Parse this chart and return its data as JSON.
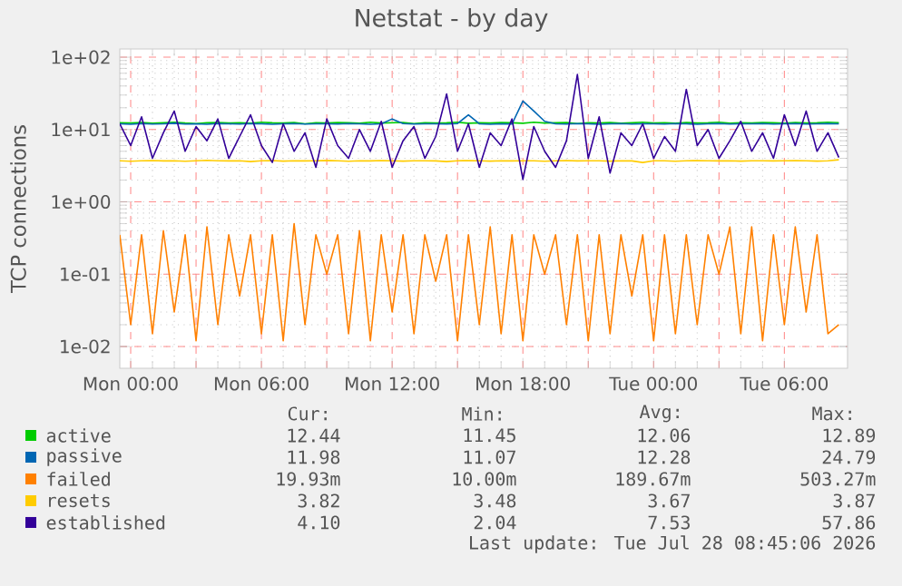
{
  "chart_data": {
    "type": "line",
    "title": "Netstat - by day",
    "ylabel": "TCP connections",
    "log": true,
    "grid": true,
    "legend": "bottom",
    "xlim": [
      "2026-07-26T23:30",
      "2026-07-28T08:54"
    ],
    "ylim": [
      0.005,
      130
    ],
    "xticks": [
      {
        "value": "2026-07-27T00:00",
        "label": "Mon 00:00"
      },
      {
        "value": "2026-07-27T03:00",
        "label": null
      },
      {
        "value": "2026-07-27T06:00",
        "label": "Mon 06:00"
      },
      {
        "value": "2026-07-27T09:00",
        "label": null
      },
      {
        "value": "2026-07-27T12:00",
        "label": "Mon 12:00"
      },
      {
        "value": "2026-07-27T15:00",
        "label": null
      },
      {
        "value": "2026-07-27T18:00",
        "label": "Mon 18:00"
      },
      {
        "value": "2026-07-27T21:00",
        "label": null
      },
      {
        "value": "2026-07-28T00:00",
        "label": "Tue 00:00"
      },
      {
        "value": "2026-07-28T03:00",
        "label": null
      },
      {
        "value": "2026-07-28T06:00",
        "label": "Tue 06:00"
      }
    ],
    "yticks": [
      {
        "value": 0.01,
        "label": "1e-02"
      },
      {
        "value": 0.1,
        "label": "1e-01"
      },
      {
        "value": 1,
        "label": "1e+00"
      },
      {
        "value": 10,
        "label": "1e+01"
      },
      {
        "value": 100,
        "label": "1e+02"
      }
    ],
    "x": [
      "2026-07-26T23:30",
      "2026-07-27T00:00",
      "2026-07-27T00:30",
      "2026-07-27T01:00",
      "2026-07-27T01:30",
      "2026-07-27T02:00",
      "2026-07-27T02:30",
      "2026-07-27T03:00",
      "2026-07-27T03:30",
      "2026-07-27T04:00",
      "2026-07-27T04:30",
      "2026-07-27T05:00",
      "2026-07-27T05:30",
      "2026-07-27T06:00",
      "2026-07-27T06:30",
      "2026-07-27T07:00",
      "2026-07-27T07:30",
      "2026-07-27T08:00",
      "2026-07-27T08:30",
      "2026-07-27T09:00",
      "2026-07-27T09:30",
      "2026-07-27T10:00",
      "2026-07-27T10:30",
      "2026-07-27T11:00",
      "2026-07-27T11:30",
      "2026-07-27T12:00",
      "2026-07-27T12:30",
      "2026-07-27T13:00",
      "2026-07-27T13:30",
      "2026-07-27T14:00",
      "2026-07-27T14:30",
      "2026-07-27T15:00",
      "2026-07-27T15:30",
      "2026-07-27T16:00",
      "2026-07-27T16:30",
      "2026-07-27T17:00",
      "2026-07-27T17:30",
      "2026-07-27T18:00",
      "2026-07-27T18:30",
      "2026-07-27T19:00",
      "2026-07-27T19:30",
      "2026-07-27T20:00",
      "2026-07-27T20:30",
      "2026-07-27T21:00",
      "2026-07-27T21:30",
      "2026-07-27T22:00",
      "2026-07-27T22:30",
      "2026-07-27T23:00",
      "2026-07-27T23:30",
      "2026-07-28T00:00",
      "2026-07-28T00:30",
      "2026-07-28T01:00",
      "2026-07-28T01:30",
      "2026-07-28T02:00",
      "2026-07-28T02:30",
      "2026-07-28T03:00",
      "2026-07-28T03:30",
      "2026-07-28T04:00",
      "2026-07-28T04:30",
      "2026-07-28T05:00",
      "2026-07-28T05:30",
      "2026-07-28T06:00",
      "2026-07-28T06:30",
      "2026-07-28T07:00",
      "2026-07-28T07:30",
      "2026-07-28T08:00",
      "2026-07-28T08:30"
    ],
    "series": [
      {
        "name": "active",
        "color": "#00cc00",
        "values": [
          12.4,
          12.3,
          12.5,
          12.2,
          12.4,
          12.6,
          12.3,
          12.1,
          12.4,
          12.5,
          12.3,
          12.4,
          12.2,
          12.6,
          12.4,
          12.3,
          12.5,
          12.0,
          12.4,
          12.3,
          12.5,
          12.4,
          12.2,
          12.6,
          12.3,
          12.4,
          12.5,
          12.1,
          12.4,
          12.3,
          12.4,
          12.6,
          12.2,
          12.4,
          12.3,
          12.5,
          12.4,
          12.2,
          12.6,
          12.3,
          12.4,
          12.5,
          12.1,
          12.4,
          12.3,
          12.5,
          12.2,
          12.4,
          12.6,
          12.3,
          12.4,
          12.2,
          12.5,
          12.3,
          12.4,
          12.6,
          12.2,
          12.4,
          12.3,
          12.5,
          12.4,
          12.2,
          12.5,
          12.3,
          12.4,
          12.6,
          12.44
        ]
      },
      {
        "name": "passive",
        "color": "#0066b3",
        "values": [
          12.0,
          11.8,
          12.1,
          11.9,
          12.0,
          12.2,
          11.9,
          12.0,
          11.8,
          12.1,
          12.0,
          11.9,
          12.1,
          12.0,
          11.8,
          12.0,
          12.1,
          11.9,
          12.0,
          12.0,
          11.9,
          12.1,
          12.0,
          11.8,
          12.0,
          14.0,
          12.1,
          11.9,
          12.0,
          12.0,
          11.9,
          12.1,
          16.0,
          12.0,
          11.8,
          12.0,
          11.9,
          24.79,
          18.0,
          13.0,
          12.0,
          11.9,
          12.1,
          12.0,
          11.8,
          12.0,
          12.1,
          11.9,
          12.0,
          12.0,
          11.9,
          12.1,
          12.0,
          11.8,
          12.0,
          12.1,
          11.9,
          12.0,
          12.0,
          12.1,
          11.9,
          12.0,
          12.1,
          11.9,
          12.0,
          12.1,
          11.98
        ]
      },
      {
        "name": "failed",
        "color": "#ff8000",
        "values": [
          0.35,
          0.02,
          0.35,
          0.015,
          0.4,
          0.03,
          0.35,
          0.012,
          0.45,
          0.02,
          0.35,
          0.05,
          0.35,
          0.015,
          0.35,
          0.012,
          0.5,
          0.02,
          0.35,
          0.1,
          0.35,
          0.015,
          0.4,
          0.012,
          0.35,
          0.03,
          0.35,
          0.015,
          0.35,
          0.08,
          0.35,
          0.012,
          0.35,
          0.02,
          0.45,
          0.015,
          0.35,
          0.012,
          0.35,
          0.1,
          0.35,
          0.02,
          0.35,
          0.012,
          0.35,
          0.015,
          0.35,
          0.05,
          0.35,
          0.012,
          0.35,
          0.015,
          0.35,
          0.02,
          0.35,
          0.1,
          0.45,
          0.015,
          0.45,
          0.012,
          0.35,
          0.02,
          0.45,
          0.03,
          0.35,
          0.015,
          0.02
        ]
      },
      {
        "name": "resets",
        "color": "#ffcc00",
        "values": [
          3.7,
          3.65,
          3.7,
          3.72,
          3.68,
          3.7,
          3.65,
          3.7,
          3.75,
          3.7,
          3.68,
          3.7,
          3.6,
          3.7,
          3.72,
          3.66,
          3.7,
          3.68,
          3.7,
          3.74,
          3.7,
          3.65,
          3.7,
          3.68,
          3.72,
          3.7,
          3.66,
          3.7,
          3.7,
          3.68,
          3.6,
          3.7,
          3.72,
          3.7,
          3.66,
          3.7,
          3.68,
          3.7,
          3.7,
          3.65,
          3.7,
          3.72,
          3.68,
          3.7,
          3.7,
          3.66,
          3.7,
          3.68,
          3.5,
          3.7,
          3.7,
          3.65,
          3.7,
          3.72,
          3.7,
          3.68,
          3.7,
          3.66,
          3.7,
          3.7,
          3.68,
          3.7,
          3.72,
          3.7,
          3.66,
          3.7,
          3.82
        ]
      },
      {
        "name": "established",
        "color": "#330099",
        "values": [
          12,
          6,
          15,
          4,
          9,
          18,
          5,
          11,
          7,
          14,
          4,
          8,
          16,
          6,
          3.5,
          12,
          5,
          9,
          3,
          14,
          6,
          4,
          10,
          5,
          13,
          3,
          7,
          11,
          4,
          8,
          31,
          5,
          12,
          3,
          9,
          6,
          14,
          2.04,
          11,
          5,
          3,
          7,
          57.86,
          4,
          15,
          2.5,
          9,
          6,
          12,
          4,
          8,
          5,
          36,
          6,
          10,
          4,
          7,
          13,
          5,
          9,
          4,
          16,
          6,
          18,
          5,
          9,
          4.1
        ]
      }
    ],
    "annotations": [
      "Cur:",
      "Min:",
      "Avg:",
      "Max:",
      "12.44",
      "11.45",
      "12.06",
      "12.89",
      "11.98",
      "11.07",
      "12.28",
      "24.79",
      "19.93m",
      "10.00m",
      "189.67m",
      "503.27m",
      "3.82",
      "3.48",
      "3.67",
      "3.87",
      "4.10",
      "2.04",
      "7.53",
      "57.86",
      "Last update: Tue Jul 28 08:45:06 2026"
    ]
  }
}
